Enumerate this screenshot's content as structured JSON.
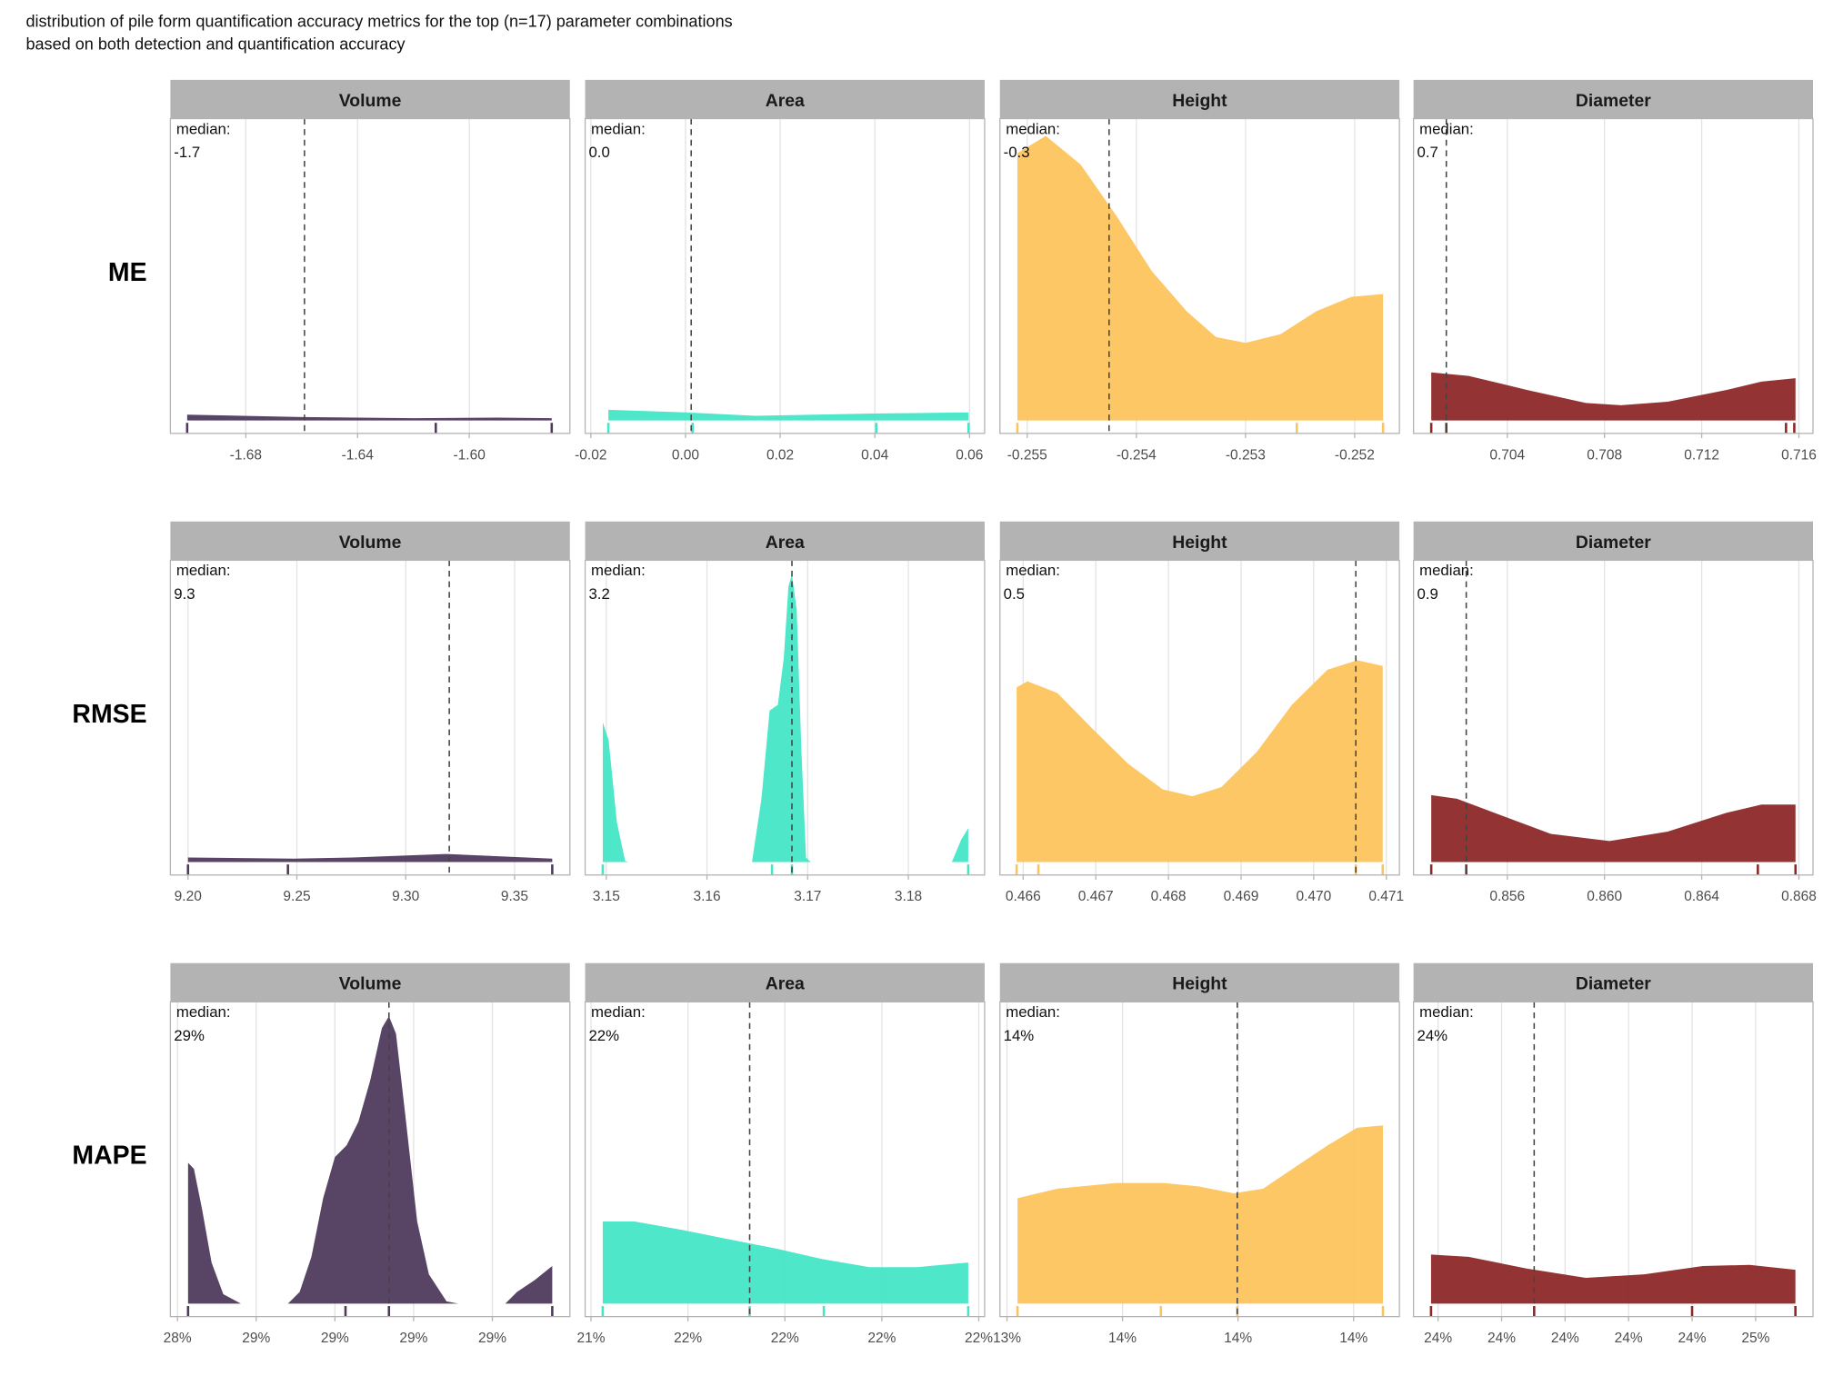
{
  "chart_data": {
    "type": "density",
    "title": [
      "distribution of pile form quantification accuracy metrics for the top (n=17) parameter combinations",
      "based on both detection and quantification accuracy"
    ],
    "columns": [
      "Volume",
      "Area",
      "Height",
      "Diameter"
    ],
    "colors": [
      "#4f3a5c",
      "#45e6c6",
      "#fcc45c",
      "#8d2828"
    ],
    "median_caption": "median:",
    "ylim": [
      -0.045,
      1.05
    ],
    "grid": true,
    "rows": [
      {
        "name": "ME",
        "panels": [
          {
            "xlim": [
              -1.707,
              -1.564
            ],
            "xticks": [
              -1.68,
              -1.64,
              {
                "value": -1.6,
                "label": "-1.60"
              }
            ],
            "median": -1.659,
            "median_value_label": "-1.7",
            "rug": [
              -1.701,
              -1.612,
              -1.5705
            ],
            "x": [
              -1.701,
              -1.66,
              -1.62,
              -1.59,
              -1.5705
            ],
            "density": [
              0.02,
              0.012,
              0.008,
              0.01,
              0.008
            ]
          },
          {
            "xlim": [
              -0.0212,
              0.0632
            ],
            "xticks": [
              -0.02,
              {
                "value": 0,
                "label": "0.00"
              },
              0.02,
              0.04,
              0.06
            ],
            "median": 0.0012,
            "median_value_label": "0.0",
            "rug": [
              -0.0163,
              0.0015,
              0.0403,
              0.0598
            ],
            "x": [
              -0.0163,
              0.0,
              0.0147,
              0.0396,
              0.0598
            ],
            "density": [
              0.037,
              0.028,
              0.016,
              0.024,
              0.028
            ]
          },
          {
            "xlim": [
              -0.25525,
              -0.25159
            ],
            "xticks": [
              -0.255,
              -0.254,
              -0.253,
              -0.252
            ],
            "median": -0.25425,
            "median_value_label": "-0.3",
            "rug": [
              -0.25509,
              -0.25253,
              -0.25174
            ],
            "x": [
              -0.25509,
              -0.25483,
              -0.25451,
              -0.25418,
              -0.25386,
              -0.25354,
              -0.25327,
              -0.253,
              -0.25268,
              -0.25235,
              -0.25203,
              -0.25174
            ],
            "density": [
              0.93,
              0.99,
              0.89,
              0.71,
              0.52,
              0.38,
              0.29,
              0.27,
              0.3,
              0.38,
              0.43,
              0.44
            ]
          },
          {
            "xlim": [
              0.70014,
              0.71658
            ],
            "xticks": [
              0.704,
              0.708,
              0.712,
              0.716
            ],
            "median": 0.70149,
            "median_value_label": "0.7",
            "rug": [
              0.70087,
              0.70149,
              0.71547,
              0.71581
            ],
            "x": [
              0.70087,
              0.70241,
              0.70482,
              0.70723,
              0.70867,
              0.7106,
              0.71301,
              0.71446,
              0.71586
            ],
            "density": [
              0.167,
              0.155,
              0.106,
              0.061,
              0.053,
              0.065,
              0.106,
              0.135,
              0.147
            ]
          }
        ]
      },
      {
        "name": "RMSE",
        "panels": [
          {
            "xlim": [
              9.19191,
              9.3754
            ],
            "xticks": [
              {
                "value": 9.2,
                "label": "9.20"
              },
              9.25,
              {
                "value": 9.3,
                "label": "9.30"
              },
              9.35
            ],
            "median": 9.32,
            "median_value_label": "9.3",
            "rug": [
              9.2,
              9.2459,
              9.3673
            ],
            "x": [
              9.2,
              9.2486,
              9.2756,
              9.3187,
              9.3673
            ],
            "density": [
              0.016,
              0.012,
              0.016,
              0.028,
              0.012
            ]
          },
          {
            "xlim": [
              3.1479,
              3.18758
            ],
            "xticks": [
              3.15,
              3.16,
              3.17,
              3.18
            ],
            "median": 3.16844,
            "median_value_label": "3.2",
            "rug": [
              3.14965,
              3.16646,
              3.16844,
              3.18595
            ],
            "x": [
              3.14965,
              3.15023,
              3.15105,
              3.15187,
              3.15222,
              3.16447,
              3.16541,
              3.16622,
              3.16704,
              3.16763,
              3.16809,
              3.16844,
              3.16891,
              3.16938,
              3.16984,
              3.17031,
              3.18432,
              3.18525,
              3.18595
            ],
            "density": [
              0.486,
              0.424,
              0.139,
              0.004,
              0,
              0,
              0.22,
              0.527,
              0.547,
              0.71,
              0.959,
              1.0,
              0.878,
              0.388,
              0.016,
              0,
              0,
              0.078,
              0.118
            ]
          },
          {
            "xlim": [
              0.46568,
              0.47118
            ],
            "xticks": [
              0.466,
              0.467,
              0.468,
              0.469,
              {
                "value": 0.47,
                "label": "0.470"
              },
              0.471
            ],
            "median": 0.47058,
            "median_value_label": "0.5",
            "rug": [
              0.46591,
              0.46621,
              0.47058,
              0.47095
            ],
            "x": [
              0.46591,
              0.46606,
              0.46647,
              0.46695,
              0.46744,
              0.46792,
              0.46833,
              0.46873,
              0.46922,
              0.4697,
              0.47019,
              0.4706,
              0.47095
            ],
            "density": [
              0.608,
              0.629,
              0.588,
              0.465,
              0.343,
              0.253,
              0.229,
              0.261,
              0.384,
              0.547,
              0.669,
              0.702,
              0.682
            ]
          },
          {
            "xlim": [
              0.85214,
              0.86858
            ],
            "xticks": [
              0.856,
              {
                "value": 0.86,
                "label": "0.860"
              },
              0.864,
              0.868
            ],
            "median": 0.85431,
            "median_value_label": "0.9",
            "rug": [
              0.85287,
              0.85431,
              0.86631,
              0.86786
            ],
            "x": [
              0.85287,
              0.85393,
              0.85586,
              0.85779,
              0.8602,
              0.8626,
              0.86501,
              0.86646,
              0.86786
            ],
            "density": [
              0.233,
              0.22,
              0.159,
              0.098,
              0.073,
              0.106,
              0.171,
              0.2,
              0.2
            ]
          }
        ]
      },
      {
        "name": "MAPE",
        "panels": [
          {
            "xlim": [
              28.382,
              29.397
            ],
            "xticks": [
              {
                "value": 28.4,
                "label": "28%"
              },
              {
                "value": 28.6,
                "label": "29%"
              },
              {
                "value": 28.8,
                "label": "29%"
              },
              {
                "value": 29.0,
                "label": "29%"
              },
              {
                "value": 29.2,
                "label": "29%"
              }
            ],
            "median": 28.9373,
            "median_value_label": "29%",
            "rug": [
              28.4269,
              28.8269,
              28.9373,
              29.3522
            ],
            "x": [
              28.4269,
              28.4418,
              28.4627,
              28.4866,
              28.5164,
              28.5612,
              28.6806,
              28.7104,
              28.7403,
              28.7701,
              28.8,
              28.8299,
              28.8597,
              28.8896,
              28.9194,
              28.9373,
              28.9552,
              28.9791,
              29.009,
              29.0388,
              29.0836,
              29.1134,
              29.2328,
              29.2627,
              29.3075,
              29.3522
            ],
            "density": [
              0.49,
              0.469,
              0.327,
              0.143,
              0.033,
              0,
              0,
              0.041,
              0.163,
              0.367,
              0.51,
              0.551,
              0.633,
              0.776,
              0.959,
              1.0,
              0.939,
              0.653,
              0.286,
              0.102,
              0.008,
              0,
              0,
              0.041,
              0.082,
              0.131
            ]
          },
          {
            "xlim": [
              21.3879,
              22.2121
            ],
            "xticks": [
              {
                "value": 21.4,
                "label": "21%"
              },
              {
                "value": 21.6,
                "label": "22%"
              },
              {
                "value": 21.8,
                "label": "22%"
              },
              {
                "value": 22.0,
                "label": "22%"
              },
              {
                "value": 22.2,
                "label": "22%"
              }
            ],
            "median": 21.7273,
            "median_value_label": "22%",
            "rug": [
              21.4242,
              21.7273,
              21.8803,
              22.1782
            ],
            "x": [
              21.4242,
              21.4897,
              21.5867,
              21.6836,
              21.7806,
              21.8776,
              21.9745,
              22.0715,
              22.1782
            ],
            "density": [
              0.286,
              0.286,
              0.257,
              0.224,
              0.192,
              0.155,
              0.127,
              0.127,
              0.143
            ]
          },
          {
            "xlim": [
              13.3878,
              14.0793
            ],
            "xticks": [
              {
                "value": 13.4,
                "label": "13%"
              },
              {
                "value": 13.6,
                "label": "14%"
              },
              {
                "value": 13.8,
                "label": "14%"
              },
              {
                "value": 14.0,
                "label": "14%"
              }
            ],
            "median": 13.7986,
            "median_value_label": "14%",
            "rug": [
              13.4183,
              13.6664,
              13.7986,
              14.0508
            ],
            "x": [
              13.4183,
              13.4875,
              13.5892,
              13.6705,
              13.7315,
              13.7925,
              13.8434,
              13.8942,
              13.9553,
              14.0061,
              14.0508
            ],
            "density": [
              0.367,
              0.4,
              0.42,
              0.42,
              0.408,
              0.384,
              0.4,
              0.469,
              0.551,
              0.612,
              0.62
            ]
          },
          {
            "xlim": [
              23.9613,
              24.5904
            ],
            "xticks": [
              {
                "value": 24.0,
                "label": "24%"
              },
              {
                "value": 24.1,
                "label": "24%"
              },
              {
                "value": 24.2,
                "label": "24%"
              },
              {
                "value": 24.3,
                "label": "24%"
              },
              {
                "value": 24.4,
                "label": "24%"
              },
              {
                "value": 24.5,
                "label": "25%"
              }
            ],
            "median": 24.1513,
            "median_value_label": "24%",
            "rug": [
              23.9889,
              24.1513,
              24.4,
              24.5627
            ],
            "x": [
              23.9889,
              24.048,
              24.1402,
              24.2325,
              24.3247,
              24.417,
              24.4908,
              24.5627
            ],
            "density": [
              0.171,
              0.163,
              0.122,
              0.09,
              0.102,
              0.131,
              0.135,
              0.118
            ]
          }
        ]
      }
    ]
  }
}
